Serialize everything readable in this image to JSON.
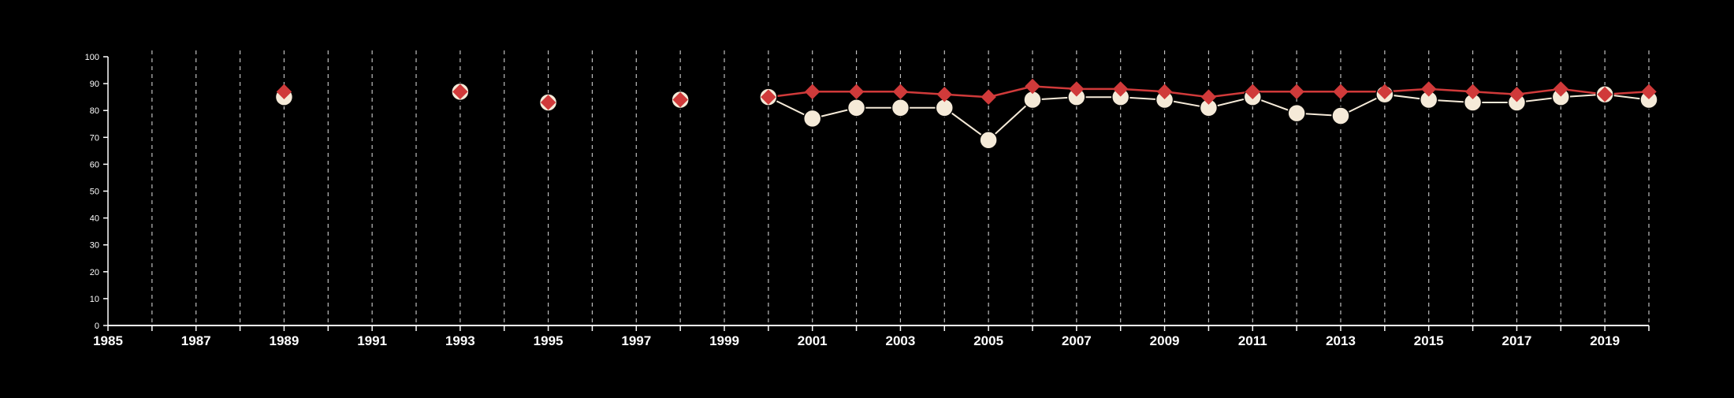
{
  "chart_data": {
    "type": "line",
    "title": "",
    "xlabel": "",
    "ylabel": "",
    "xlim": [
      1985,
      2020
    ],
    "ylim": [
      0,
      100
    ],
    "x_ticks": [
      1985,
      1987,
      1989,
      1991,
      1993,
      1995,
      1997,
      1999,
      2001,
      2003,
      2005,
      2007,
      2009,
      2011,
      2013,
      2015,
      2017,
      2019
    ],
    "y_ticks": [
      0,
      10,
      20,
      30,
      40,
      50,
      60,
      70,
      80,
      90,
      100
    ],
    "vertical_gridlines": [
      1986,
      1987,
      1988,
      1989,
      1990,
      1991,
      1992,
      1993,
      1994,
      1995,
      1996,
      1997,
      1998,
      1999,
      2000,
      2001,
      2002,
      2003,
      2004,
      2005,
      2006,
      2007,
      2008,
      2009,
      2010,
      2011,
      2012,
      2013,
      2014,
      2015,
      2016,
      2017,
      2018,
      2019,
      2020
    ],
    "grid": "vertical dashed",
    "legend": "none",
    "series": [
      {
        "marker": "circle",
        "color": "#f5ead8",
        "connected_from": 2000,
        "points": [
          [
            1989,
            85
          ],
          [
            1993,
            87
          ],
          [
            1995,
            83
          ],
          [
            1998,
            84
          ],
          [
            2000,
            85
          ],
          [
            2001,
            77
          ],
          [
            2002,
            81
          ],
          [
            2003,
            81
          ],
          [
            2004,
            81
          ],
          [
            2005,
            69
          ],
          [
            2006,
            84
          ],
          [
            2007,
            85
          ],
          [
            2008,
            85
          ],
          [
            2009,
            84
          ],
          [
            2010,
            81
          ],
          [
            2011,
            85
          ],
          [
            2012,
            79
          ],
          [
            2013,
            78
          ],
          [
            2014,
            86
          ],
          [
            2015,
            84
          ],
          [
            2016,
            83
          ],
          [
            2017,
            83
          ],
          [
            2018,
            85
          ],
          [
            2019,
            86
          ],
          [
            2020,
            84
          ]
        ]
      },
      {
        "marker": "diamond",
        "color": "#d03a3a",
        "connected_from": 2000,
        "points": [
          [
            1989,
            87
          ],
          [
            1993,
            87
          ],
          [
            1995,
            83
          ],
          [
            1998,
            84
          ],
          [
            2000,
            85
          ],
          [
            2001,
            87
          ],
          [
            2002,
            87
          ],
          [
            2003,
            87
          ],
          [
            2004,
            86
          ],
          [
            2005,
            85
          ],
          [
            2006,
            89
          ],
          [
            2007,
            88
          ],
          [
            2008,
            88
          ],
          [
            2009,
            87
          ],
          [
            2010,
            85
          ],
          [
            2011,
            87
          ],
          [
            2012,
            87
          ],
          [
            2013,
            87
          ],
          [
            2014,
            87
          ],
          [
            2015,
            88
          ],
          [
            2016,
            87
          ],
          [
            2017,
            86
          ],
          [
            2018,
            88
          ],
          [
            2019,
            86
          ],
          [
            2020,
            87
          ]
        ]
      }
    ]
  }
}
